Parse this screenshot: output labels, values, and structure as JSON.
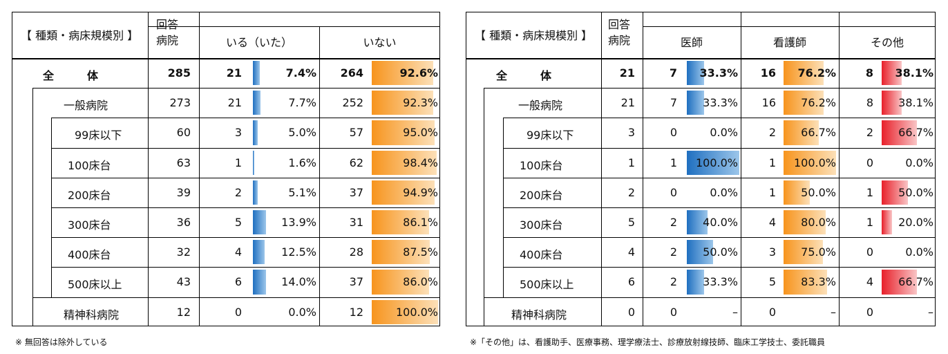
{
  "left": {
    "header": {
      "category": "【 種類・病床規模別 】",
      "responding": "回答\n病院",
      "group_label": "いる（いた）",
      "no_label": "いない"
    },
    "rows": [
      {
        "label": "全　　　体",
        "n": "285",
        "yes": "21",
        "yes_pct": "7.4%",
        "yes_frac": 0.074,
        "no": "264",
        "no_pct": "92.6%",
        "no_frac": 0.926,
        "bold": true
      },
      {
        "label": "一般病院",
        "n": "273",
        "yes": "21",
        "yes_pct": "7.7%",
        "yes_frac": 0.077,
        "no": "252",
        "no_pct": "92.3%",
        "no_frac": 0.923
      },
      {
        "label": "99床以下",
        "n": "60",
        "yes": "3",
        "yes_pct": "5.0%",
        "yes_frac": 0.05,
        "no": "57",
        "no_pct": "95.0%",
        "no_frac": 0.95
      },
      {
        "label": "100床台",
        "n": "63",
        "yes": "1",
        "yes_pct": "1.6%",
        "yes_frac": 0.016,
        "no": "62",
        "no_pct": "98.4%",
        "no_frac": 0.984
      },
      {
        "label": "200床台",
        "n": "39",
        "yes": "2",
        "yes_pct": "5.1%",
        "yes_frac": 0.051,
        "no": "37",
        "no_pct": "94.9%",
        "no_frac": 0.949
      },
      {
        "label": "300床台",
        "n": "36",
        "yes": "5",
        "yes_pct": "13.9%",
        "yes_frac": 0.139,
        "no": "31",
        "no_pct": "86.1%",
        "no_frac": 0.861
      },
      {
        "label": "400床台",
        "n": "32",
        "yes": "4",
        "yes_pct": "12.5%",
        "yes_frac": 0.125,
        "no": "28",
        "no_pct": "87.5%",
        "no_frac": 0.875
      },
      {
        "label": "500床以上",
        "n": "43",
        "yes": "6",
        "yes_pct": "14.0%",
        "yes_frac": 0.14,
        "no": "37",
        "no_pct": "86.0%",
        "no_frac": 0.86
      },
      {
        "label": "精神科病院",
        "n": "12",
        "yes": "0",
        "yes_pct": "0.0%",
        "yes_frac": 0,
        "no": "12",
        "no_pct": "100.0%",
        "no_frac": 1.0
      }
    ],
    "note": "※ 無回答は除外している"
  },
  "right": {
    "header": {
      "category": "【 種類・病床規模別 】",
      "responding": "回答\n病院",
      "doctor": "医師",
      "nurse": "看護師",
      "other": "その他"
    },
    "rows": [
      {
        "label": "全　　　体",
        "n": "21",
        "d": "7",
        "d_pct": "33.3%",
        "d_frac": 0.333,
        "u": "16",
        "u_pct": "76.2%",
        "u_frac": 0.762,
        "o": "8",
        "o_pct": "38.1%",
        "o_frac": 0.381,
        "bold": true
      },
      {
        "label": "一般病院",
        "n": "21",
        "d": "7",
        "d_pct": "33.3%",
        "d_frac": 0.333,
        "u": "16",
        "u_pct": "76.2%",
        "u_frac": 0.762,
        "o": "8",
        "o_pct": "38.1%",
        "o_frac": 0.381
      },
      {
        "label": "99床以下",
        "n": "3",
        "d": "0",
        "d_pct": "0.0%",
        "d_frac": 0,
        "u": "2",
        "u_pct": "66.7%",
        "u_frac": 0.667,
        "o": "2",
        "o_pct": "66.7%",
        "o_frac": 0.667
      },
      {
        "label": "100床台",
        "n": "1",
        "d": "1",
        "d_pct": "100.0%",
        "d_frac": 1.0,
        "u": "1",
        "u_pct": "100.0%",
        "u_frac": 1.0,
        "o": "0",
        "o_pct": "0.0%",
        "o_frac": 0
      },
      {
        "label": "200床台",
        "n": "2",
        "d": "0",
        "d_pct": "0.0%",
        "d_frac": 0,
        "u": "1",
        "u_pct": "50.0%",
        "u_frac": 0.5,
        "o": "1",
        "o_pct": "50.0%",
        "o_frac": 0.5
      },
      {
        "label": "300床台",
        "n": "5",
        "d": "2",
        "d_pct": "40.0%",
        "d_frac": 0.4,
        "u": "4",
        "u_pct": "80.0%",
        "u_frac": 0.8,
        "o": "1",
        "o_pct": "20.0%",
        "o_frac": 0.2
      },
      {
        "label": "400床台",
        "n": "4",
        "d": "2",
        "d_pct": "50.0%",
        "d_frac": 0.5,
        "u": "3",
        "u_pct": "75.0%",
        "u_frac": 0.75,
        "o": "0",
        "o_pct": "0.0%",
        "o_frac": 0
      },
      {
        "label": "500床以上",
        "n": "6",
        "d": "2",
        "d_pct": "33.3%",
        "d_frac": 0.333,
        "u": "5",
        "u_pct": "83.3%",
        "u_frac": 0.833,
        "o": "4",
        "o_pct": "66.7%",
        "o_frac": 0.667
      },
      {
        "label": "精神科病院",
        "n": "0",
        "d": "0",
        "d_pct": "–",
        "d_frac": 0,
        "u": "0",
        "u_pct": "–",
        "u_frac": 0,
        "o": "0",
        "o_pct": "–",
        "o_frac": 0
      }
    ],
    "note": "※「その他」は、看護助手、医療事務、理学療法士、診療放射線技師、臨床工学技士、委託職員"
  }
}
